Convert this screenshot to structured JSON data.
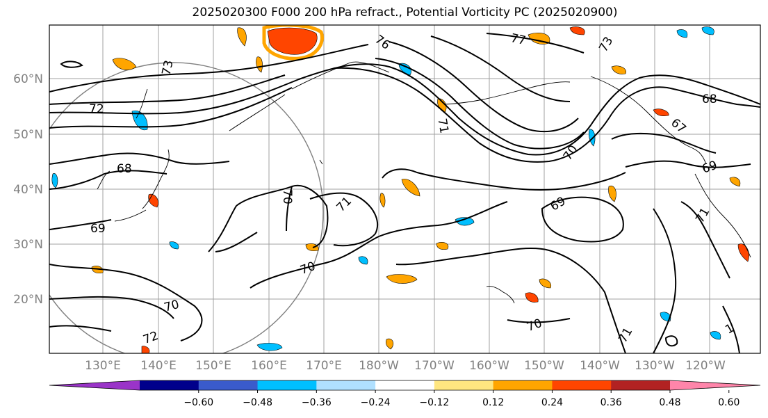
{
  "title": "2025020300 F000 200 hPa refract., Potential Vorticity PC (2025020900)",
  "lat_labels": [
    "60°N",
    "50°N",
    "40°N",
    "30°N",
    "20°N"
  ],
  "lon_labels": [
    "130°E",
    "140°E",
    "150°E",
    "160°E",
    "170°E",
    "180°W",
    "170°W",
    "160°W",
    "150°W",
    "140°W",
    "130°W",
    "120°W"
  ],
  "contour_labels": [
    "72",
    "73",
    "76",
    "77",
    "73",
    "68",
    "67",
    "71",
    "70",
    "69",
    "68",
    "69",
    "71",
    "70",
    "70",
    "70",
    "70",
    "72",
    "71",
    "1"
  ],
  "colorbar": {
    "colors": [
      "#9a34c8",
      "#00008b",
      "#3a5bcc",
      "#00bfff",
      "#b0e0ff",
      "#ffffff",
      "#ffe680",
      "#ffa500",
      "#ff4500",
      "#b22222",
      "#ff85aa"
    ],
    "tick_labels": [
      "−0.60",
      "−0.48",
      "−0.36",
      "−0.24",
      "−0.12",
      "0.12",
      "0.24",
      "0.36",
      "0.48",
      "0.60"
    ]
  }
}
